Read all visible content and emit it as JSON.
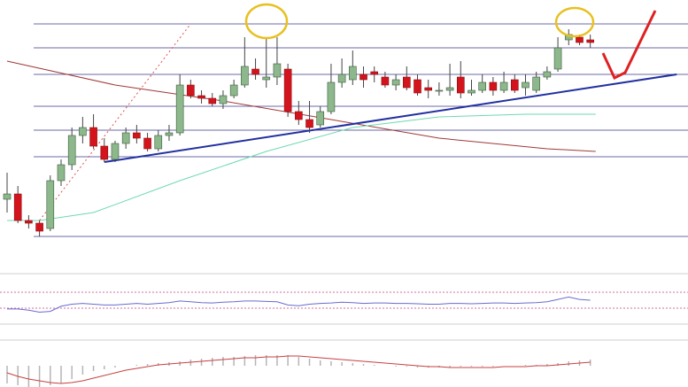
{
  "chart_data": {
    "type": "candlestick",
    "xlim": [
      0,
      62.8
    ],
    "ylim": [
      0,
      100
    ],
    "open": [
      25,
      27,
      17,
      16,
      14,
      32,
      38,
      49,
      52,
      45,
      40,
      46,
      50,
      48,
      44,
      49,
      50,
      68,
      64,
      63,
      61,
      64,
      68,
      74,
      70,
      71,
      74,
      58,
      55,
      53,
      58,
      69,
      70,
      72,
      73,
      71,
      68,
      71,
      70,
      67,
      66,
      66,
      71,
      65,
      66,
      69,
      66,
      70,
      67,
      66,
      71,
      74,
      85,
      86,
      85
    ],
    "close": [
      27,
      17,
      16,
      13,
      32,
      38,
      49,
      52,
      45,
      40,
      46,
      50,
      48,
      44,
      49,
      50,
      68,
      64,
      63,
      61,
      64,
      68,
      75,
      72,
      71,
      76,
      58,
      55,
      52,
      58,
      69,
      72,
      75,
      70,
      72,
      68,
      70,
      67,
      65,
      66,
      66,
      67,
      65,
      66,
      69,
      66,
      69,
      66,
      69,
      71,
      73,
      82,
      87,
      84,
      84
    ],
    "high": [
      35,
      30,
      19,
      17,
      34,
      40,
      52,
      56,
      57,
      48,
      47,
      52,
      53,
      50,
      51,
      53,
      72,
      70,
      66,
      65,
      66,
      70,
      86,
      78,
      86,
      86,
      76,
      62,
      62,
      60,
      76,
      78,
      81,
      75,
      75,
      73,
      72,
      75,
      72,
      70,
      69,
      76,
      77,
      70,
      72,
      71,
      73,
      72,
      72,
      73,
      75,
      86,
      89,
      87,
      87
    ],
    "low": [
      20,
      16,
      14,
      11,
      13,
      30,
      36,
      46,
      44,
      39,
      39,
      44,
      46,
      43,
      43,
      47,
      49,
      63,
      61,
      60,
      59,
      63,
      67,
      70,
      67,
      68,
      56,
      53,
      50,
      52,
      57,
      67,
      68,
      67,
      69,
      67,
      66,
      66,
      64,
      63,
      64,
      64,
      63,
      64,
      65,
      64,
      65,
      65,
      64,
      65,
      70,
      73,
      83,
      83,
      82
    ],
    "colors": {
      "up": "#8cb88c",
      "down": "#d4141c"
    },
    "hlines": [
      91,
      82,
      72,
      60,
      51,
      41,
      11
    ],
    "trendline": {
      "x": [
        9,
        62
      ],
      "values": [
        39,
        72
      ],
      "color": "#2230a0"
    },
    "dotted_line": {
      "x": [
        3,
        17
      ],
      "values": [
        17,
        91
      ],
      "color": "#e05050"
    },
    "ma_slow": {
      "x": [
        0,
        10,
        20,
        30,
        40,
        50,
        54.5
      ],
      "values": [
        77,
        68,
        62,
        55,
        48,
        44,
        43
      ],
      "color": "#a03838"
    },
    "ma_fast": {
      "x": [
        0,
        3,
        8,
        16,
        24,
        32,
        40,
        48,
        54.5
      ],
      "values": [
        17,
        17,
        20,
        32,
        43,
        52,
        56,
        57,
        57
      ],
      "color": "#6dd9b0"
    },
    "rsi_lim": [
      0,
      100
    ],
    "rsi_levels": [
      70,
      30
    ],
    "rsi": [
      28,
      28,
      25,
      20,
      22,
      35,
      40,
      42,
      40,
      38,
      38,
      40,
      42,
      40,
      42,
      44,
      48,
      46,
      44,
      43,
      45,
      46,
      48,
      48,
      47,
      46,
      38,
      36,
      40,
      42,
      43,
      45,
      44,
      42,
      43,
      43,
      42,
      42,
      41,
      40,
      40,
      42,
      42,
      41,
      42,
      43,
      43,
      42,
      43,
      44,
      46,
      52,
      58,
      52,
      50
    ],
    "macd_lim": [
      -25,
      25
    ],
    "macd_hist": [
      -20,
      -22,
      -24,
      -24,
      -22,
      -20,
      -15,
      -10,
      -6,
      -4,
      -2,
      0,
      1,
      2,
      3,
      4,
      5,
      7,
      8,
      9,
      10,
      10,
      11,
      12,
      12,
      12,
      12,
      10,
      8,
      6,
      5,
      4,
      3,
      2,
      1,
      0,
      -1,
      -1,
      -2,
      -2,
      -2,
      -2,
      -1,
      -1,
      -1,
      -1,
      0,
      0,
      1,
      1,
      2,
      3,
      5,
      6,
      7
    ],
    "macd_signal": [
      -8,
      -12,
      -15,
      -17,
      -19,
      -20,
      -19,
      -17,
      -14,
      -11,
      -8,
      -5,
      -3,
      -1,
      1,
      2,
      3,
      4,
      5,
      6,
      7,
      8,
      9,
      9,
      10,
      10,
      11,
      11,
      10,
      9,
      8,
      7,
      6,
      5,
      4,
      3,
      2,
      1,
      0,
      -1,
      -1,
      -2,
      -2,
      -2,
      -2,
      -2,
      -1,
      -1,
      -1,
      0,
      0,
      1,
      2,
      3,
      4
    ]
  }
}
